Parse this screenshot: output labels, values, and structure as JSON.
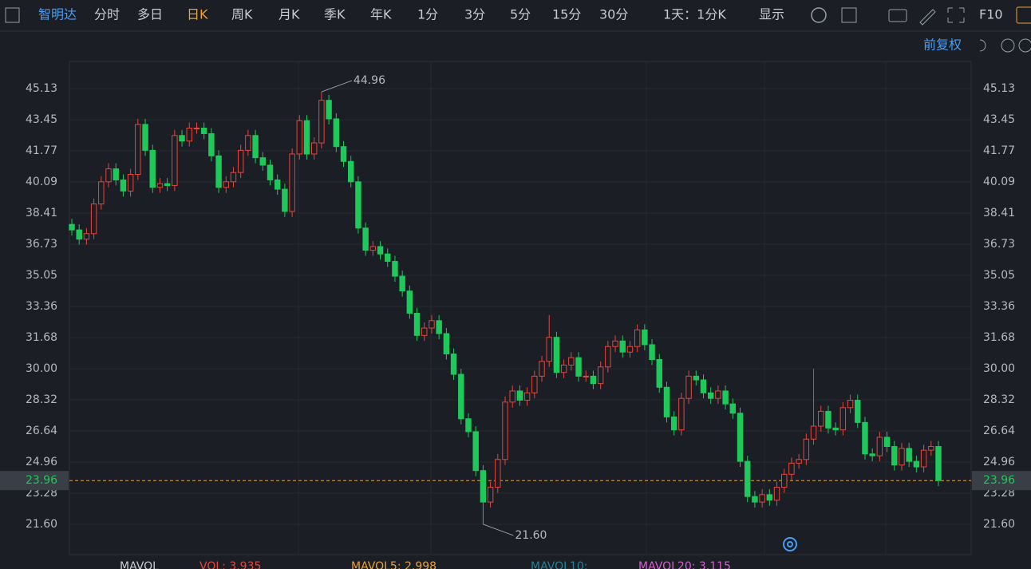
{
  "toolbar": {
    "stock": "智明达",
    "periods": [
      "分时",
      "多日",
      "日K",
      "周K",
      "月K",
      "季K",
      "年K",
      "1分",
      "3分",
      "5分",
      "15分",
      "30分"
    ],
    "range": "1天：1分K",
    "display": "显示",
    "f10": "F10"
  },
  "adjust": "前复权",
  "indicator": {
    "name": "MAVOL",
    "vol": "VOL: 3.935",
    "ma5": "MAVOL5: 2.998",
    "ma10": "MAVOL10:",
    "ma20": "MAVOL20: 3.115"
  },
  "chart_data": {
    "type": "candlestick",
    "up_color": "#e5463d",
    "down_color": "#1ec85a",
    "ylim": [
      19.96,
      46.6
    ],
    "yticks": [
      45.13,
      43.45,
      41.77,
      40.09,
      38.41,
      36.73,
      35.05,
      33.36,
      31.68,
      {
        "value": 30,
        "label": "30.00"
      },
      28.32,
      26.64,
      24.96,
      23.28,
      {
        "value": 21.6,
        "label": "21.60"
      }
    ],
    "grid": true,
    "last_price": 23.96,
    "annotations": [
      44.96,
      {
        "value": 21.6,
        "label": "21.60"
      }
    ],
    "open": [
      37.8,
      37.5,
      37.0,
      37.3,
      38.9,
      40.1,
      40.8,
      40.2,
      39.6,
      40.5,
      43.2,
      41.8,
      39.8,
      40.0,
      39.9,
      42.6,
      42.3,
      43.0,
      43.0,
      42.7,
      41.5,
      39.8,
      40.1,
      40.6,
      41.8,
      42.6,
      41.4,
      41.0,
      40.2,
      39.7,
      38.5,
      41.6,
      43.4,
      41.6,
      42.2,
      44.5,
      43.5,
      42.0,
      41.2,
      40.1,
      37.6,
      36.4,
      36.6,
      36.2,
      35.8,
      35.0,
      34.2,
      33.0,
      31.8,
      32.2,
      32.6,
      31.9,
      30.8,
      29.7,
      27.3,
      26.6,
      24.5,
      22.8,
      23.6,
      25.1,
      28.2,
      28.8,
      28.3,
      28.7,
      29.6,
      30.4,
      31.7,
      29.8,
      30.2,
      30.6,
      29.6,
      29.6,
      29.2,
      30.1,
      31.2,
      31.5,
      30.9,
      31.2,
      32.1,
      31.3,
      30.5,
      29.0,
      27.4,
      26.7,
      28.4,
      29.6,
      29.4,
      28.7,
      28.4,
      28.8,
      28.1,
      27.6,
      25.0,
      23.1,
      22.8,
      23.2,
      22.9,
      23.6,
      24.3,
      24.9,
      25.1,
      26.2,
      26.9,
      27.7,
      26.8,
      26.7,
      27.9,
      28.3,
      27.1,
      25.4,
      25.3,
      26.3,
      25.8,
      24.8,
      25.7,
      25.0,
      24.7,
      25.6,
      25.8
    ],
    "high": [
      38.1,
      37.8,
      37.6,
      39.2,
      40.4,
      41.1,
      41.1,
      40.5,
      40.8,
      43.5,
      43.5,
      42.1,
      40.3,
      40.3,
      42.9,
      42.9,
      43.3,
      43.3,
      43.3,
      43.0,
      41.8,
      40.4,
      40.9,
      42.1,
      42.9,
      42.9,
      41.7,
      41.3,
      40.5,
      40.0,
      41.9,
      43.7,
      43.7,
      42.5,
      44.96,
      44.8,
      43.8,
      42.3,
      41.5,
      40.4,
      37.9,
      36.9,
      36.9,
      36.5,
      36.1,
      35.3,
      34.5,
      33.3,
      32.5,
      32.9,
      32.9,
      32.2,
      31.1,
      30.0,
      27.6,
      26.9,
      24.8,
      23.9,
      25.4,
      28.5,
      29.1,
      29.1,
      29.0,
      29.9,
      30.7,
      32.9,
      32.0,
      30.5,
      30.9,
      30.9,
      29.9,
      29.9,
      30.4,
      31.5,
      31.8,
      31.8,
      31.5,
      32.4,
      32.4,
      31.6,
      30.8,
      29.3,
      27.7,
      28.7,
      29.9,
      29.9,
      29.7,
      29.0,
      29.1,
      29.1,
      28.4,
      27.9,
      25.3,
      23.4,
      23.5,
      23.5,
      23.9,
      24.6,
      25.2,
      25.4,
      26.5,
      30.0,
      28.0,
      28.0,
      27.1,
      28.2,
      28.6,
      28.6,
      27.4,
      25.7,
      26.6,
      26.6,
      26.1,
      26.0,
      26.0,
      25.3,
      25.9,
      26.1,
      26.1
    ],
    "low": [
      37.2,
      36.7,
      36.7,
      37.0,
      38.6,
      39.8,
      39.9,
      39.3,
      39.3,
      40.2,
      41.5,
      39.5,
      39.5,
      39.6,
      39.6,
      42.0,
      42.0,
      42.7,
      42.4,
      41.2,
      39.5,
      39.5,
      39.8,
      40.3,
      41.5,
      41.1,
      40.7,
      39.9,
      39.4,
      38.2,
      38.2,
      41.3,
      41.3,
      41.3,
      41.9,
      43.2,
      41.7,
      40.9,
      39.8,
      37.3,
      36.1,
      36.1,
      35.9,
      35.5,
      34.7,
      33.9,
      32.7,
      31.5,
      31.5,
      31.9,
      31.6,
      30.5,
      29.4,
      27.0,
      26.3,
      24.2,
      21.6,
      22.5,
      23.3,
      24.8,
      27.9,
      28.0,
      28.0,
      28.4,
      29.3,
      30.1,
      29.5,
      29.5,
      29.9,
      29.3,
      29.3,
      28.9,
      28.9,
      29.8,
      30.9,
      30.6,
      30.6,
      30.9,
      31.0,
      30.2,
      28.7,
      27.1,
      26.4,
      26.4,
      28.1,
      29.1,
      28.4,
      28.1,
      28.1,
      27.8,
      27.3,
      24.7,
      22.8,
      22.5,
      22.5,
      22.6,
      22.6,
      23.3,
      24.0,
      24.6,
      24.8,
      25.9,
      26.6,
      26.5,
      26.4,
      26.4,
      27.6,
      26.8,
      25.1,
      25.0,
      25.0,
      25.5,
      24.5,
      24.5,
      24.7,
      24.4,
      24.4,
      25.3,
      23.66
    ],
    "close": [
      37.5,
      37.0,
      37.3,
      38.9,
      40.1,
      40.8,
      40.2,
      39.6,
      40.5,
      43.2,
      41.8,
      39.8,
      40.0,
      39.9,
      42.6,
      42.3,
      43.0,
      43.0,
      42.7,
      41.5,
      39.8,
      40.1,
      40.6,
      41.8,
      42.6,
      41.4,
      41.0,
      40.2,
      39.7,
      38.5,
      41.6,
      43.4,
      41.6,
      42.2,
      44.5,
      43.5,
      42.0,
      41.2,
      40.1,
      37.6,
      36.4,
      36.6,
      36.2,
      35.8,
      35.0,
      34.2,
      33.0,
      31.8,
      32.2,
      32.6,
      31.9,
      30.8,
      29.7,
      27.3,
      26.6,
      24.5,
      22.8,
      23.6,
      25.1,
      28.2,
      28.8,
      28.3,
      28.7,
      29.6,
      30.4,
      31.7,
      29.8,
      30.2,
      30.6,
      29.6,
      29.6,
      29.2,
      30.1,
      31.2,
      31.5,
      30.9,
      31.2,
      32.1,
      31.3,
      30.5,
      29.0,
      27.4,
      26.7,
      28.4,
      29.6,
      29.4,
      28.7,
      28.4,
      28.8,
      28.1,
      27.6,
      25.0,
      23.1,
      22.8,
      23.2,
      22.9,
      23.6,
      24.3,
      24.9,
      25.1,
      26.2,
      26.9,
      27.7,
      26.8,
      26.7,
      27.9,
      28.3,
      27.1,
      25.4,
      25.3,
      26.3,
      25.8,
      24.8,
      25.7,
      25.0,
      24.7,
      25.6,
      25.8,
      23.96
    ]
  }
}
